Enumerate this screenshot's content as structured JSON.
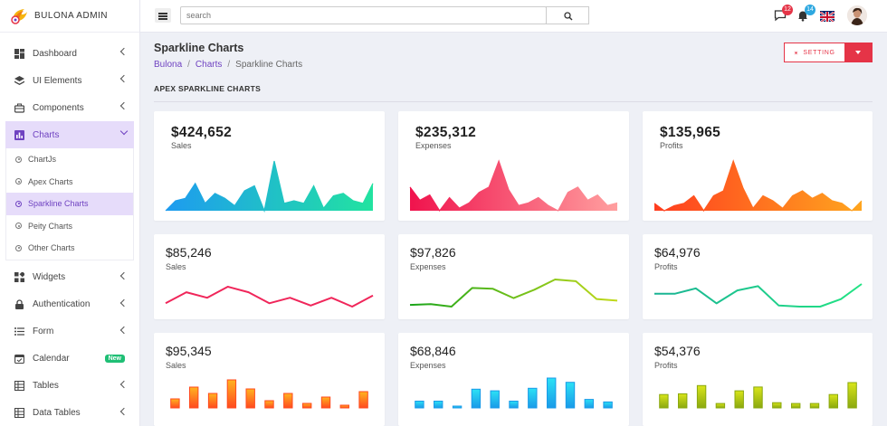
{
  "brand": {
    "name": "BULONA ADMIN"
  },
  "sidebar": {
    "items": [
      {
        "label": "Dashboard",
        "icon": "dashboard-icon"
      },
      {
        "label": "UI Elements",
        "icon": "layers-icon"
      },
      {
        "label": "Components",
        "icon": "briefcase-icon"
      },
      {
        "label": "Charts",
        "icon": "bar-chart-icon"
      },
      {
        "label": "Widgets",
        "icon": "widgets-icon"
      },
      {
        "label": "Authentication",
        "icon": "lock-icon"
      },
      {
        "label": "Form",
        "icon": "list-icon"
      },
      {
        "label": "Calendar",
        "icon": "calendar-icon",
        "badge": "New"
      },
      {
        "label": "Tables",
        "icon": "table-icon"
      },
      {
        "label": "Data Tables",
        "icon": "table-icon"
      }
    ],
    "charts_sub": [
      "ChartJs",
      "Apex Charts",
      "Sparkline Charts",
      "Peity Charts",
      "Other Charts"
    ]
  },
  "header": {
    "search_placeholder": "search",
    "messages_count": "12",
    "notifications_count": "14"
  },
  "page": {
    "title": "Sparkline Charts",
    "breadcrumb": [
      "Bulona",
      "Charts",
      "Sparkline Charts"
    ],
    "setting_label": "SETTING",
    "section_title": "APEX SPARKLINE CHARTS"
  },
  "colors": {
    "accent": "#6f42c1",
    "danger": "#e53447",
    "new_badge": "#1fbf75"
  },
  "cards": [
    {
      "value": "$424,652",
      "label": "Sales"
    },
    {
      "value": "$235,312",
      "label": "Expenses"
    },
    {
      "value": "$135,965",
      "label": "Profits"
    },
    {
      "value": "$85,246",
      "label": "Sales"
    },
    {
      "value": "$97,826",
      "label": "Expenses"
    },
    {
      "value": "$64,976",
      "label": "Profits"
    },
    {
      "value": "$95,345",
      "label": "Sales"
    },
    {
      "value": "$68,846",
      "label": "Expenses"
    },
    {
      "value": "$54,376",
      "label": "Profits"
    }
  ],
  "chart_data": [
    {
      "type": "area",
      "series": [
        {
          "values": [
            10,
            14,
            15,
            21,
            13,
            17,
            15,
            12,
            18,
            20,
            10,
            30,
            13,
            14,
            13,
            20,
            11,
            16,
            17,
            14,
            13,
            21
          ]
        }
      ]
    },
    {
      "type": "area",
      "series": [
        {
          "values": [
            20,
            15,
            17,
            11,
            16,
            12,
            14,
            18,
            20,
            30,
            19,
            13,
            14,
            16,
            13,
            11,
            18,
            20,
            15,
            17,
            13,
            14
          ]
        }
      ]
    },
    {
      "type": "area",
      "series": [
        {
          "values": [
            13,
            10,
            12,
            13,
            16,
            10,
            16,
            18,
            30,
            19,
            11,
            16,
            14,
            11,
            16,
            18,
            15,
            17,
            14,
            13,
            10,
            14
          ]
        }
      ]
    },
    {
      "type": "line",
      "series": [
        {
          "values": [
            20,
            30,
            25,
            35,
            30,
            20,
            25,
            18,
            25,
            17,
            27
          ]
        }
      ]
    },
    {
      "type": "line",
      "series": [
        {
          "values": [
            10,
            11,
            8,
            30,
            29,
            18,
            28,
            40,
            38,
            17,
            15
          ]
        }
      ]
    },
    {
      "type": "line",
      "series": [
        {
          "values": [
            27,
            27,
            32,
            18,
            30,
            34,
            16,
            15,
            15,
            22,
            36
          ]
        }
      ]
    },
    {
      "type": "bar",
      "series": [
        {
          "values": [
            10,
            23,
            16,
            31,
            21,
            8,
            16,
            5,
            12,
            3,
            18
          ]
        }
      ]
    },
    {
      "type": "bar",
      "series": [
        {
          "values": [
            8,
            8,
            2,
            22,
            20,
            8,
            23,
            35,
            30,
            10,
            7
          ]
        }
      ]
    },
    {
      "type": "bar",
      "series": [
        {
          "values": [
            18,
            19,
            30,
            6,
            23,
            28,
            7,
            6,
            6,
            18,
            34
          ]
        }
      ]
    }
  ]
}
